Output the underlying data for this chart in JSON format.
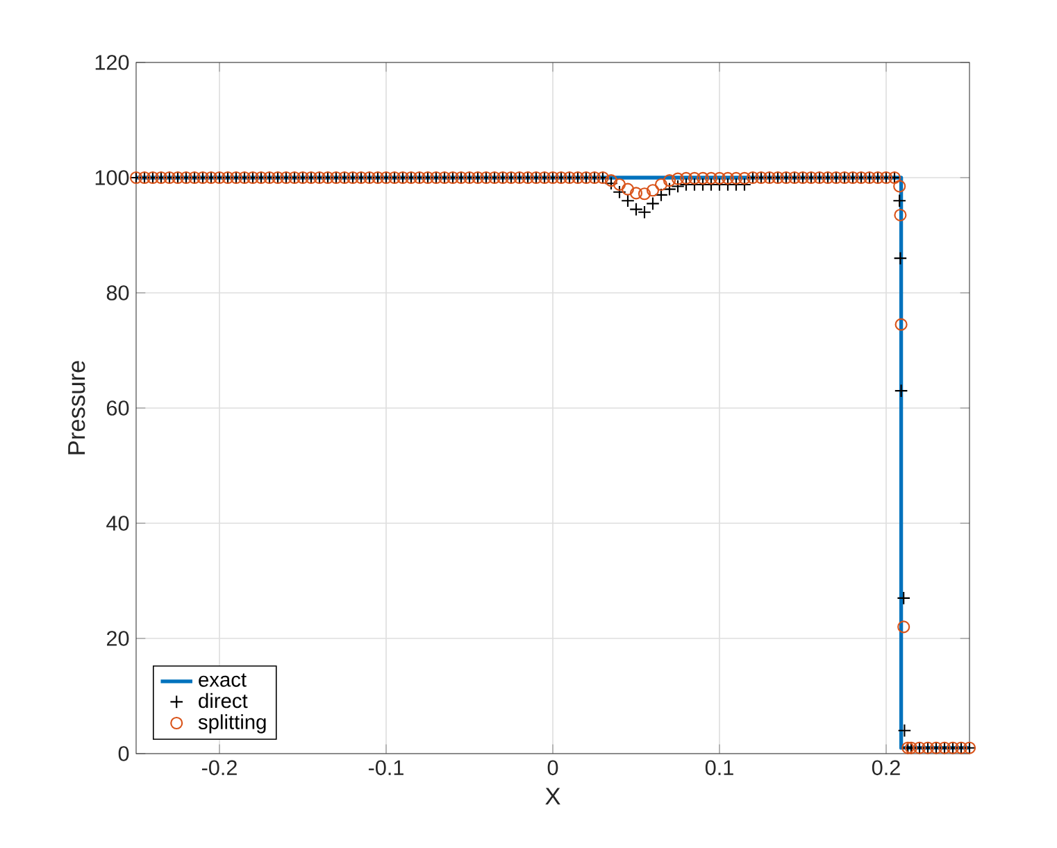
{
  "chart_data": {
    "type": "line",
    "xlabel": "X",
    "ylabel": "Pressure",
    "xlim": [
      -0.25,
      0.25
    ],
    "ylim": [
      0,
      120
    ],
    "xticks": [
      -0.2,
      -0.1,
      0,
      0.1,
      0.2
    ],
    "yticks": [
      0,
      20,
      40,
      60,
      80,
      100,
      120
    ],
    "grid": true,
    "legend": "bottom left",
    "series": [
      {
        "name": "exact",
        "color": "#0072bd",
        "marker": "none",
        "line_style": "solid",
        "x": [
          -0.25,
          0.209,
          0.209,
          0.25
        ],
        "values": [
          100,
          100,
          1,
          1
        ]
      },
      {
        "name": "direct",
        "type": "scatter",
        "color": "#000000",
        "marker": "cross",
        "x": [
          -0.25,
          -0.245,
          -0.24,
          -0.235,
          -0.23,
          -0.225,
          -0.22,
          -0.215,
          -0.21,
          -0.205,
          -0.2,
          -0.195,
          -0.19,
          -0.185,
          -0.18,
          -0.175,
          -0.17,
          -0.165,
          -0.16,
          -0.155,
          -0.15,
          -0.145,
          -0.14,
          -0.135,
          -0.13,
          -0.125,
          -0.12,
          -0.115,
          -0.11,
          -0.105,
          -0.1,
          -0.095,
          -0.09,
          -0.085,
          -0.08,
          -0.075,
          -0.07,
          -0.065,
          -0.06,
          -0.055,
          -0.05,
          -0.045,
          -0.04,
          -0.035,
          -0.03,
          -0.025,
          -0.02,
          -0.015,
          -0.01,
          -0.005,
          0,
          0.005,
          0.01,
          0.015,
          0.02,
          0.025,
          0.03,
          0.035,
          0.04,
          0.045,
          0.05,
          0.055,
          0.06,
          0.065,
          0.07,
          0.075,
          0.08,
          0.085,
          0.09,
          0.095,
          0.1,
          0.105,
          0.11,
          0.115,
          0.12,
          0.125,
          0.13,
          0.135,
          0.14,
          0.145,
          0.15,
          0.155,
          0.16,
          0.165,
          0.17,
          0.175,
          0.18,
          0.185,
          0.19,
          0.195,
          0.2,
          0.205,
          0.208,
          0.2085,
          0.209,
          0.2105,
          0.211,
          0.213,
          0.215,
          0.22,
          0.225,
          0.23,
          0.235,
          0.24,
          0.245,
          0.25
        ],
        "values": [
          100,
          100,
          100,
          100,
          100,
          100,
          100,
          100,
          100,
          100,
          100,
          100,
          100,
          100,
          100,
          100,
          100,
          100,
          100,
          100,
          100,
          100,
          100,
          100,
          100,
          100,
          100,
          100,
          100,
          100,
          100,
          100,
          100,
          100,
          100,
          100,
          100,
          100,
          100,
          100,
          100,
          100,
          100,
          100,
          100,
          100,
          100,
          100,
          100,
          100,
          100,
          100,
          100,
          100,
          100,
          100,
          100,
          99,
          97.5,
          96,
          94.5,
          94,
          95.5,
          97,
          98,
          98.5,
          98.8,
          98.8,
          98.8,
          98.8,
          98.8,
          98.8,
          98.8,
          98.8,
          100,
          100,
          100,
          100,
          100,
          100,
          100,
          100,
          100,
          100,
          100,
          100,
          100,
          100,
          100,
          100,
          100,
          100,
          96,
          86,
          63,
          27,
          4,
          1,
          1,
          1,
          1,
          1,
          1,
          1,
          1,
          1
        ]
      },
      {
        "name": "splitting",
        "type": "scatter",
        "color": "#d95319",
        "marker": "circle",
        "x": [
          -0.25,
          -0.245,
          -0.24,
          -0.235,
          -0.23,
          -0.225,
          -0.22,
          -0.215,
          -0.21,
          -0.205,
          -0.2,
          -0.195,
          -0.19,
          -0.185,
          -0.18,
          -0.175,
          -0.17,
          -0.165,
          -0.16,
          -0.155,
          -0.15,
          -0.145,
          -0.14,
          -0.135,
          -0.13,
          -0.125,
          -0.12,
          -0.115,
          -0.11,
          -0.105,
          -0.1,
          -0.095,
          -0.09,
          -0.085,
          -0.08,
          -0.075,
          -0.07,
          -0.065,
          -0.06,
          -0.055,
          -0.05,
          -0.045,
          -0.04,
          -0.035,
          -0.03,
          -0.025,
          -0.02,
          -0.015,
          -0.01,
          -0.005,
          0,
          0.005,
          0.01,
          0.015,
          0.02,
          0.025,
          0.03,
          0.035,
          0.04,
          0.045,
          0.05,
          0.055,
          0.06,
          0.065,
          0.07,
          0.075,
          0.08,
          0.085,
          0.09,
          0.095,
          0.1,
          0.105,
          0.11,
          0.115,
          0.12,
          0.125,
          0.13,
          0.135,
          0.14,
          0.145,
          0.15,
          0.155,
          0.16,
          0.165,
          0.17,
          0.175,
          0.18,
          0.185,
          0.19,
          0.195,
          0.2,
          0.205,
          0.208,
          0.2085,
          0.209,
          0.2105,
          0.213,
          0.215,
          0.22,
          0.225,
          0.23,
          0.235,
          0.24,
          0.245,
          0.25
        ],
        "values": [
          100,
          100,
          100,
          100,
          100,
          100,
          100,
          100,
          100,
          100,
          100,
          100,
          100,
          100,
          100,
          100,
          100,
          100,
          100,
          100,
          100,
          100,
          100,
          100,
          100,
          100,
          100,
          100,
          100,
          100,
          100,
          100,
          100,
          100,
          100,
          100,
          100,
          100,
          100,
          100,
          100,
          100,
          100,
          100,
          100,
          100,
          100,
          100,
          100,
          100,
          100,
          100,
          100,
          100,
          100,
          100,
          100,
          99.5,
          98.8,
          98,
          97.3,
          97.2,
          97.8,
          98.8,
          99.5,
          99.8,
          99.9,
          99.9,
          99.9,
          99.9,
          99.9,
          99.9,
          99.9,
          99.9,
          100,
          100,
          100,
          100,
          100,
          100,
          100,
          100,
          100,
          100,
          100,
          100,
          100,
          100,
          100,
          100,
          100,
          100,
          98.5,
          93.5,
          74.5,
          22,
          1,
          1,
          1,
          1,
          1,
          1,
          1,
          1,
          1
        ]
      }
    ]
  }
}
